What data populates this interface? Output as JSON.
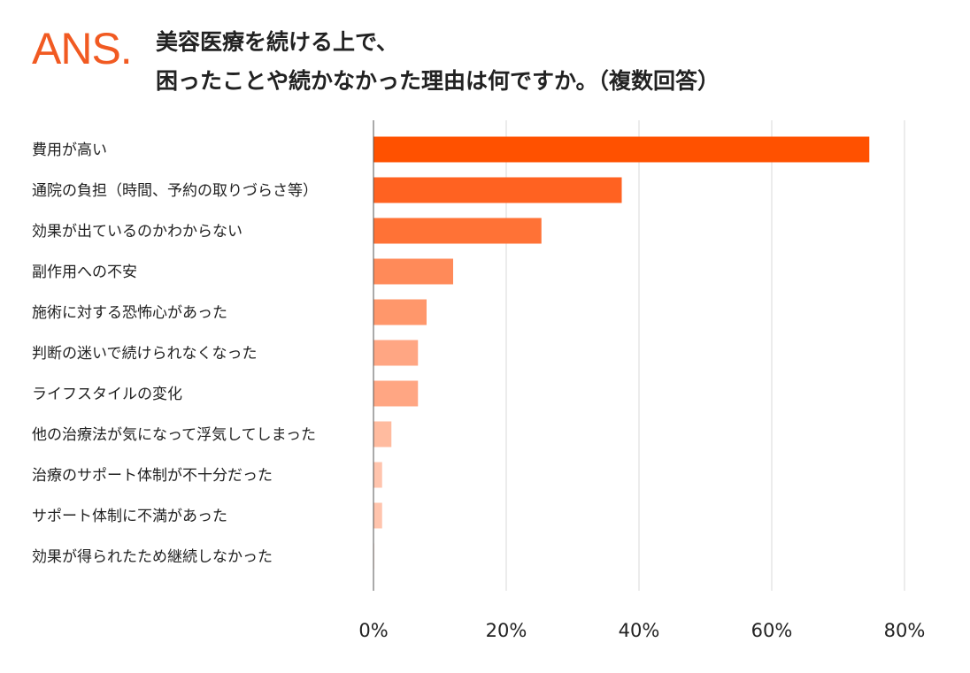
{
  "logo": {
    "text": "ANS."
  },
  "header": {
    "title_line1": "美容医療を続ける上で、",
    "title_line2": "困ったことや続かなかった理由は何ですか。（複数回答）"
  },
  "colors": {
    "bars": [
      "#ff5100",
      "#ff6221",
      "#ff7236",
      "#ff8a59",
      "#ff976b",
      "#ffa683",
      "#ffa683",
      "#ffbb9f",
      "#ffc4ad",
      "#ffc4ad",
      "#ffd7c7"
    ],
    "grid": "#d9d9d9",
    "axis": "#555555",
    "brand": "#f15a22"
  },
  "chart_data": {
    "type": "bar",
    "orientation": "horizontal",
    "title": "美容医療を続ける上で、困ったことや続かなかった理由は何ですか。（複数回答）",
    "categories": [
      "費用が高い",
      "通院の負担（時間、予約の取りづらさ等）",
      "効果が出ているのかわからない",
      "副作用への不安",
      "施術に対する恐怖心があった",
      "判断の迷いで続けられなくなった",
      "ライフスタイルの変化",
      "他の治療法が気になって浮気してしまった",
      "治療のサポート体制が不十分だった",
      "サポート体制に不満があった",
      "効果が得られたため継続しなかった"
    ],
    "values": [
      74.7,
      37.4,
      25.3,
      12.0,
      8.0,
      6.7,
      6.7,
      2.7,
      1.3,
      1.3,
      0.1
    ],
    "unit": "%",
    "xlim": [
      0,
      80
    ],
    "xticks": [
      0,
      20,
      40,
      60,
      80
    ],
    "xtick_labels": [
      "0%",
      "20%",
      "40%",
      "60%",
      "80%"
    ],
    "grid": true
  }
}
